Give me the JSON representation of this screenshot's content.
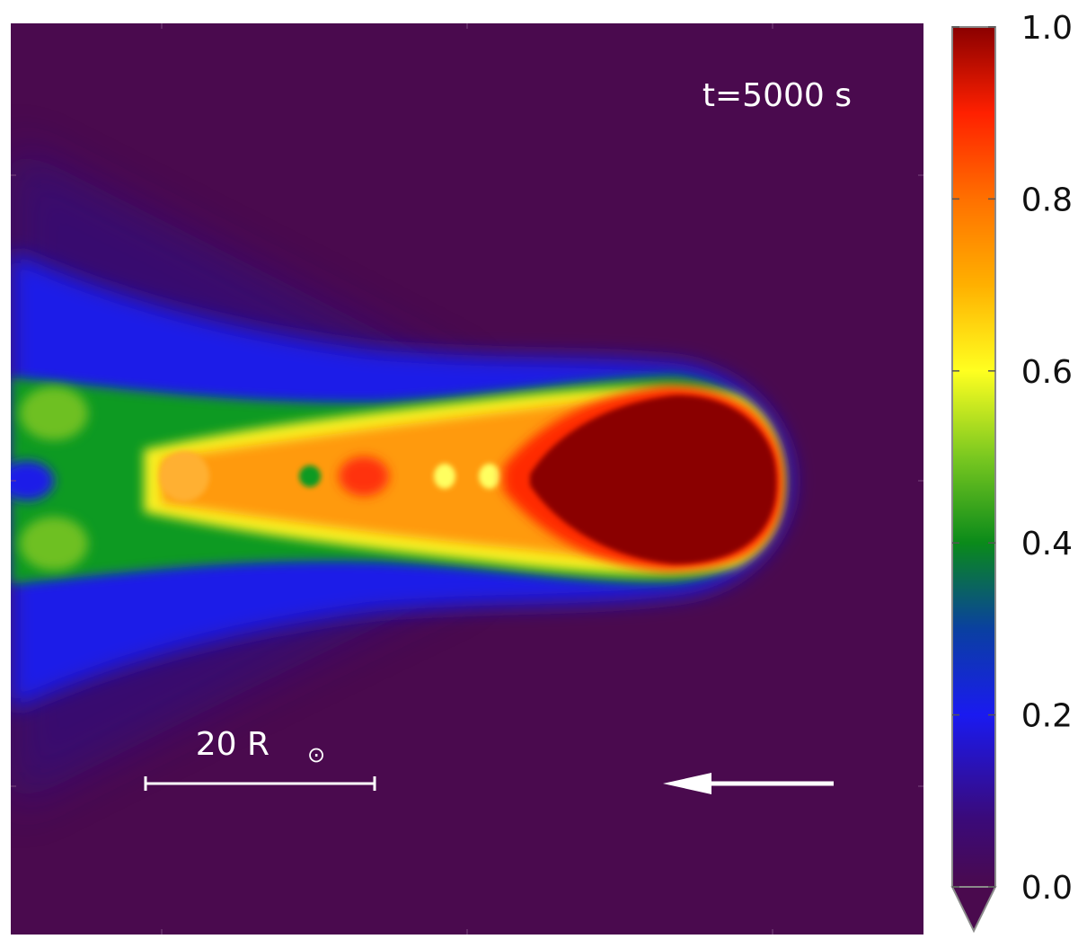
{
  "chart_data": {
    "type": "heatmap",
    "title": "",
    "xlabel": "",
    "ylabel": "",
    "time_label": "t=5000 s",
    "scale_bar": {
      "value": 20,
      "unit": "R",
      "unit_symbol": "⊙",
      "label_number": "20 R"
    },
    "direction_arrow": "left",
    "colorbar": {
      "vmin": 0.0,
      "vmax": 1.0,
      "extend": "min",
      "ticks": [
        0.0,
        0.2,
        0.4,
        0.6,
        0.8,
        1.0
      ],
      "tick_labels": [
        "0.0",
        "0.2",
        "0.4",
        "0.6",
        "0.8",
        "1.0"
      ],
      "colormap_stops": [
        {
          "value": 0.0,
          "color": "#4a0a4e"
        },
        {
          "value": 0.08,
          "color": "#3a0a7a"
        },
        {
          "value": 0.2,
          "color": "#1a1af0"
        },
        {
          "value": 0.3,
          "color": "#0a40a0"
        },
        {
          "value": 0.4,
          "color": "#0a8a1a"
        },
        {
          "value": 0.5,
          "color": "#7ac820"
        },
        {
          "value": 0.6,
          "color": "#ffff20"
        },
        {
          "value": 0.7,
          "color": "#ffb000"
        },
        {
          "value": 0.8,
          "color": "#ff7000"
        },
        {
          "value": 0.9,
          "color": "#ff2000"
        },
        {
          "value": 1.0,
          "color": "#8a0000"
        }
      ]
    },
    "background_color": "#4a0a4e"
  }
}
